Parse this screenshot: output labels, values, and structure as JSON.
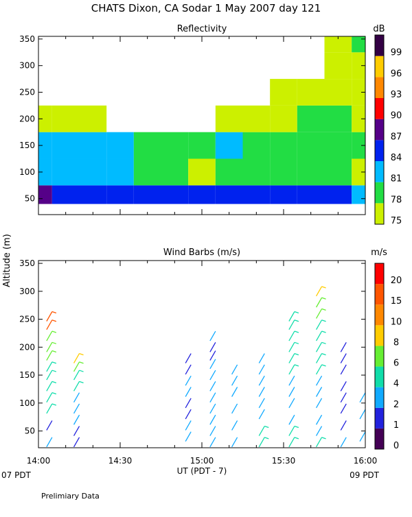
{
  "title": "CHATS Dixon, CA  Sodar    1 May 2007  day 121",
  "colors": {
    "refl_scale": [
      "#ccf000",
      "#22dd44",
      "#00bbff",
      "#0022ee",
      "#550088",
      "#ff0000",
      "#ff8800",
      "#ffcc00",
      "#330044"
    ],
    "wind_scale": [
      "#440055",
      "#2222dd",
      "#11aaff",
      "#11ddaa",
      "#66ee33",
      "#ffcc00",
      "#ff8800",
      "#ff5500",
      "#ff0000"
    ]
  },
  "shared_axes": {
    "ylabel": "Altitude (m)",
    "yticks": [
      50,
      100,
      150,
      200,
      250,
      300,
      350
    ],
    "ylim": [
      20,
      355
    ],
    "xlim": [
      "14:00",
      "16:00"
    ],
    "xticks": [
      "14:00",
      "14:30",
      "15:00",
      "15:30",
      "16:00"
    ],
    "xlabel": "UT  (PDT - 7)",
    "x_local_start": "07 PDT",
    "x_local_end": "09 PDT"
  },
  "footer": "Prelimiary Data",
  "chart_data": [
    {
      "type": "heatmap",
      "title": "Reflectivity",
      "units": "dB",
      "colorbar_ticks": [
        "75",
        "78",
        "81",
        "84",
        "87",
        "90",
        "93",
        "96",
        "99"
      ],
      "x": [
        "14:00",
        "14:10",
        "14:20",
        "14:30",
        "14:40",
        "14:50",
        "15:00",
        "15:10",
        "15:20",
        "15:30",
        "15:40",
        "15:50",
        "16:00"
      ],
      "y": [
        50,
        100,
        150,
        200,
        250,
        300,
        350
      ],
      "levels_db": [
        [
          87,
          84,
          84,
          84,
          84,
          84,
          84,
          84,
          84,
          84,
          84,
          84,
          81
        ],
        [
          81,
          81,
          81,
          81,
          78,
          78,
          75,
          78,
          78,
          78,
          78,
          78,
          75
        ],
        [
          81,
          81,
          81,
          81,
          78,
          78,
          78,
          81,
          78,
          78,
          78,
          78,
          78
        ],
        [
          75,
          75,
          75,
          null,
          null,
          null,
          null,
          75,
          75,
          75,
          78,
          78,
          75
        ],
        [
          null,
          null,
          null,
          null,
          null,
          null,
          null,
          null,
          null,
          75,
          75,
          75,
          75
        ],
        [
          null,
          null,
          null,
          null,
          null,
          null,
          null,
          null,
          null,
          null,
          null,
          75,
          75
        ],
        [
          null,
          null,
          null,
          null,
          null,
          null,
          null,
          null,
          null,
          null,
          null,
          75,
          78
        ]
      ]
    },
    {
      "type": "scatter",
      "title": "Wind Barbs (m/s)",
      "units": "m/s",
      "colorbar_ticks": [
        "0",
        "1",
        "2",
        "4",
        "6",
        "8",
        "10",
        "15",
        "20"
      ],
      "series": [
        {
          "x": "14:04",
          "y": [
            30,
            60,
            90,
            110,
            130,
            150,
            165,
            185,
            200,
            220,
            240,
            255
          ],
          "speed": [
            2,
            1,
            4,
            4,
            4,
            4,
            4,
            6,
            6,
            6,
            15,
            15
          ]
        },
        {
          "x": "14:14",
          "y": [
            30,
            50,
            70,
            90,
            110,
            130,
            150,
            165,
            180
          ],
          "speed": [
            1,
            1,
            2,
            2,
            2,
            4,
            4,
            6,
            8
          ]
        },
        {
          "x": "14:55",
          "y": [
            40,
            60,
            80,
            100,
            120,
            140,
            160,
            180
          ],
          "speed": [
            2,
            2,
            1,
            1,
            2,
            2,
            1,
            1
          ]
        },
        {
          "x": "15:04",
          "y": [
            30,
            50,
            70,
            90,
            110,
            130,
            150,
            170,
            185,
            200,
            220
          ],
          "speed": [
            2,
            2,
            2,
            2,
            2,
            2,
            2,
            2,
            1,
            1,
            2
          ]
        },
        {
          "x": "15:12",
          "y": [
            30,
            60,
            90,
            120,
            140,
            160
          ],
          "speed": [
            2,
            2,
            2,
            2,
            2,
            2
          ]
        },
        {
          "x": "15:22",
          "y": [
            30,
            50,
            80,
            100,
            120,
            140,
            160,
            180
          ],
          "speed": [
            4,
            4,
            2,
            2,
            2,
            2,
            2,
            2
          ]
        },
        {
          "x": "15:33",
          "y": [
            30,
            50,
            70,
            100,
            120,
            140,
            160,
            180,
            200,
            220,
            240,
            255
          ],
          "speed": [
            4,
            4,
            2,
            2,
            2,
            2,
            4,
            4,
            4,
            4,
            4,
            4
          ]
        },
        {
          "x": "15:43",
          "y": [
            30,
            50,
            70,
            100,
            120,
            140,
            160,
            180,
            200,
            220,
            240,
            260,
            280,
            300
          ],
          "speed": [
            4,
            2,
            2,
            2,
            2,
            2,
            4,
            4,
            4,
            4,
            4,
            6,
            6,
            8
          ]
        },
        {
          "x": "15:52",
          "y": [
            30,
            60,
            90,
            110,
            130,
            160,
            180,
            200
          ],
          "speed": [
            2,
            1,
            1,
            1,
            1,
            1,
            1,
            1
          ]
        },
        {
          "x": "15:59",
          "y": [
            40,
            80,
            110
          ],
          "speed": [
            2,
            2,
            2
          ]
        }
      ]
    }
  ]
}
